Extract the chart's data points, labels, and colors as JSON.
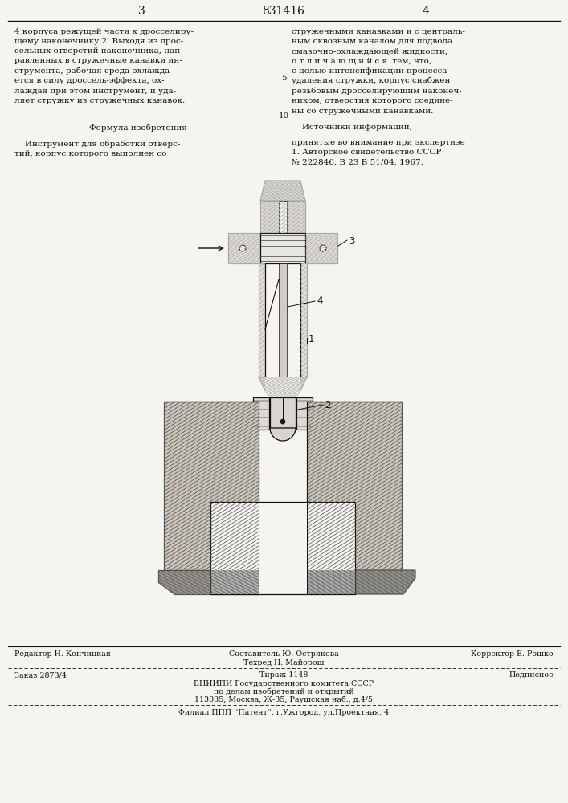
{
  "page_color": "#f5f4f0",
  "patent_number": "831416",
  "page_left_num": "3",
  "page_right_num": "4",
  "top_left_text": "4 корпуса режущей части к дросселиру-\nщему наконечнику 2. Выходя из дрос-\nсельных отверстий наконечника, нап-\nравленных в стружечные канавки ин-\nструмента, рабочая среда охлажда-\nется в силу дроссель-эффекта, ох-\nлаждая при этом инструмент, и уда-\nляет стружку из стружечных канавок.",
  "formula_title": "Формула изобретения",
  "formula_text": "    Инструмент для обработки отверс-\nтий, корпус которого выполнен со",
  "top_right_text": "стружечными канавками и с централь-\nным сквозным каналом для подвода\nсмазочно-охлаждающей жидкости,\nо т л и ч а ю щ и й с я  тем, что,\nс целью интенсификации процесса\nудаления стружки, корпус снабжен\nрезьбовым дросселирующим наконеч-\nником, отверстия которого соедине-\nны со стружечными канавками.",
  "sources_title": "    Источники информации,",
  "sources_text": "принятые во внимание при экспертизе\n1. Авторское свидетельство СССР\n№ 222846, В 23 В 51/04, 1967.",
  "line_num_5": "5",
  "line_num_10": "10",
  "footer_col1_line1": "Редактор Н. Кончицкая",
  "footer_col2_line1": "Составитель Ю. Острякова",
  "footer_col2_line2": "Техред Н. Майорош",
  "footer_col3_line1": "Корректор Е. Рошко",
  "footer_order": "Заказ 2873/4",
  "footer_tirazh": "Тираж 1148",
  "footer_podpisnoe": "Подписное",
  "footer_vniip1": "ВНИИПИ Государственного комитета СССР",
  "footer_vniip2": "по делам изобретений и открытий",
  "footer_vniip3": "113035, Москва, Ж-35, Раушская наб., д.4/5",
  "footer_filial": "Филиал ППП ''Патент'', г.Ужгород, ул.Проектная, 4",
  "text_color": "#111111",
  "drawing_color": "#111111"
}
